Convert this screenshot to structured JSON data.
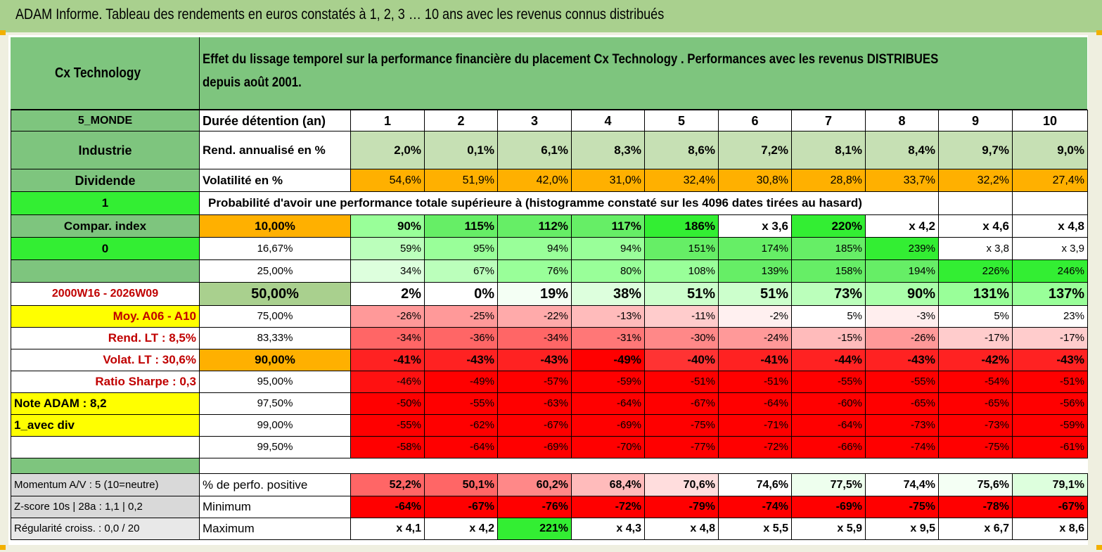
{
  "title": "ADAM Informe. Tableau des rendements en euros constatés à 1, 2, 3 … 10 ans avec les revenus connus distribués",
  "fund": {
    "name": "Cx Technology",
    "description_line1": "Effet du lissage temporel sur la performance financière du placement Cx Technology . Performances avec les revenus DISTRIBUES",
    "description_line2": "depuis août 2001."
  },
  "header_row": {
    "side_label": "5_MONDE",
    "row_label": "Durée détention (an)",
    "years": [
      "1",
      "2",
      "3",
      "4",
      "5",
      "6",
      "7",
      "8",
      "9",
      "10"
    ]
  },
  "rend_row": {
    "side_label": "Industrie",
    "row_label": "Rend. annualisé en %",
    "values": [
      "2,0%",
      "0,1%",
      "6,1%",
      "8,3%",
      "8,6%",
      "7,2%",
      "8,1%",
      "8,4%",
      "9,7%",
      "9,0%"
    ]
  },
  "vol_row": {
    "side_label": "Dividende",
    "row_label": "Volatilité en %",
    "values": [
      "54,6%",
      "51,9%",
      "42,0%",
      "31,0%",
      "32,4%",
      "30,8%",
      "28,8%",
      "33,7%",
      "32,2%",
      "27,4%"
    ]
  },
  "prob_row": {
    "side_label": "1",
    "text": "Probabilité d'avoir une performance totale supérieure à (histogramme constaté sur les 4096 dates tirées au hasard)"
  },
  "side_labels": {
    "compar": "Compar. index",
    "zero": "0",
    "empty": "",
    "period": "2000W16 - 2026W09",
    "moy": "Moy. A06 - A10",
    "rend_lt": "Rend. LT :   8,5%",
    "volat_lt": "Volat. LT :   30,6%",
    "sharpe": "Ratio Sharpe :    0,3",
    "note": "Note ADAM : 8,2",
    "avec_div": "1_avec div"
  },
  "quantile_rows": [
    {
      "pct": "10,00%",
      "values": [
        "90%",
        "115%",
        "112%",
        "117%",
        "186%",
        "x 3,6",
        "220%",
        "x 4,2",
        "x 4,6",
        "x 4,8"
      ]
    },
    {
      "pct": "16,67%",
      "values": [
        "59%",
        "95%",
        "94%",
        "94%",
        "151%",
        "174%",
        "185%",
        "239%",
        "x 3,8",
        "x 3,9"
      ]
    },
    {
      "pct": "25,00%",
      "values": [
        "34%",
        "67%",
        "76%",
        "80%",
        "108%",
        "139%",
        "158%",
        "194%",
        "226%",
        "246%"
      ]
    },
    {
      "pct": "50,00%",
      "values": [
        "2%",
        "0%",
        "19%",
        "38%",
        "51%",
        "51%",
        "73%",
        "90%",
        "131%",
        "137%"
      ]
    },
    {
      "pct": "75,00%",
      "values": [
        "-26%",
        "-25%",
        "-22%",
        "-13%",
        "-11%",
        "-2%",
        "5%",
        "-3%",
        "5%",
        "23%"
      ]
    },
    {
      "pct": "83,33%",
      "values": [
        "-34%",
        "-36%",
        "-34%",
        "-31%",
        "-30%",
        "-24%",
        "-15%",
        "-26%",
        "-17%",
        "-17%"
      ]
    },
    {
      "pct": "90,00%",
      "values": [
        "-41%",
        "-43%",
        "-43%",
        "-49%",
        "-40%",
        "-41%",
        "-44%",
        "-43%",
        "-42%",
        "-43%"
      ]
    },
    {
      "pct": "95,00%",
      "values": [
        "-46%",
        "-49%",
        "-57%",
        "-59%",
        "-51%",
        "-51%",
        "-55%",
        "-55%",
        "-54%",
        "-51%"
      ]
    },
    {
      "pct": "97,50%",
      "values": [
        "-50%",
        "-55%",
        "-63%",
        "-64%",
        "-67%",
        "-64%",
        "-60%",
        "-65%",
        "-65%",
        "-56%"
      ]
    },
    {
      "pct": "99,00%",
      "values": [
        "-55%",
        "-62%",
        "-67%",
        "-69%",
        "-75%",
        "-71%",
        "-64%",
        "-73%",
        "-73%",
        "-59%"
      ]
    },
    {
      "pct": "99,50%",
      "values": [
        "-58%",
        "-64%",
        "-69%",
        "-70%",
        "-77%",
        "-72%",
        "-66%",
        "-74%",
        "-75%",
        "-61%"
      ]
    }
  ],
  "bottom_rows": [
    {
      "side": "Momentum A/V : 5 (10=neutre)",
      "label": "% de perfo. positive",
      "values": [
        "52,2%",
        "50,1%",
        "60,2%",
        "68,4%",
        "70,6%",
        "74,6%",
        "77,5%",
        "74,4%",
        "75,6%",
        "79,1%"
      ]
    },
    {
      "side": "Z-score 10s | 28a : 1,1 | 0,2",
      "label": "Minimum",
      "values": [
        "-64%",
        "-67%",
        "-76%",
        "-72%",
        "-79%",
        "-74%",
        "-69%",
        "-75%",
        "-78%",
        "-67%"
      ]
    },
    {
      "side": "Régularité croiss. : 0,0 / 20",
      "label": "Maximum",
      "values": [
        "x 4,1",
        "x 4,2",
        "221%",
        "x 4,3",
        "x 4,8",
        "x 5,5",
        "x 5,9",
        "x 9,5",
        "x 6,7",
        "x 8,6"
      ]
    }
  ],
  "colors": {
    "header_green": "#7ec57e",
    "bright_green": "#33ee33",
    "orange": "#ffb000",
    "yellow": "#ffff00",
    "red": "#ff0000",
    "label_red": "#c00000"
  }
}
